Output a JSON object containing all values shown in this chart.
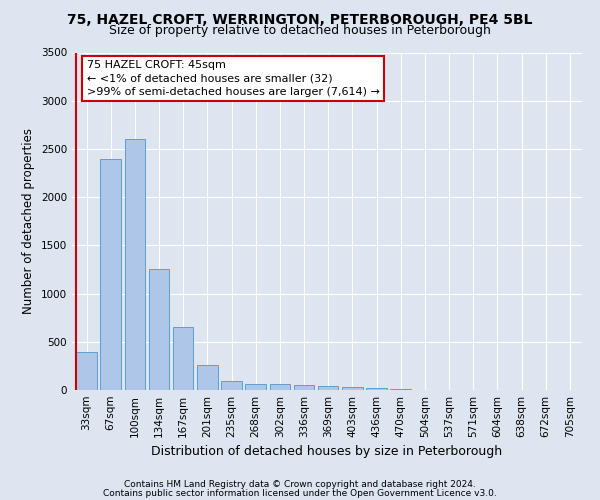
{
  "title": "75, HAZEL CROFT, WERRINGTON, PETERBOROUGH, PE4 5BL",
  "subtitle": "Size of property relative to detached houses in Peterborough",
  "xlabel": "Distribution of detached houses by size in Peterborough",
  "ylabel": "Number of detached properties",
  "footnote1": "Contains HM Land Registry data © Crown copyright and database right 2024.",
  "footnote2": "Contains public sector information licensed under the Open Government Licence v3.0.",
  "categories": [
    "33sqm",
    "67sqm",
    "100sqm",
    "134sqm",
    "167sqm",
    "201sqm",
    "235sqm",
    "268sqm",
    "302sqm",
    "336sqm",
    "369sqm",
    "403sqm",
    "436sqm",
    "470sqm",
    "504sqm",
    "537sqm",
    "571sqm",
    "604sqm",
    "638sqm",
    "672sqm",
    "705sqm"
  ],
  "values": [
    390,
    2400,
    2600,
    1250,
    650,
    260,
    90,
    65,
    65,
    55,
    40,
    30,
    20,
    10,
    5,
    3,
    2,
    2,
    1,
    1,
    1
  ],
  "bar_color": "#aec6e8",
  "bar_edge_color": "#5a9fd4",
  "annotation_text": "75 HAZEL CROFT: 45sqm\n← <1% of detached houses are smaller (32)\n>99% of semi-detached houses are larger (7,614) →",
  "annotation_box_color": "#ffffff",
  "annotation_box_edge": "#cc0000",
  "marker_line_color": "#cc0000",
  "ylim": [
    0,
    3500
  ],
  "yticks": [
    0,
    500,
    1000,
    1500,
    2000,
    2500,
    3000,
    3500
  ],
  "background_color": "#dde5f0",
  "plot_bg_color": "#dde5f0",
  "grid_color": "#ffffff",
  "title_fontsize": 10,
  "subtitle_fontsize": 9,
  "axis_label_fontsize": 8.5,
  "tick_fontsize": 7.5,
  "annotation_fontsize": 8,
  "footnote_fontsize": 6.5
}
